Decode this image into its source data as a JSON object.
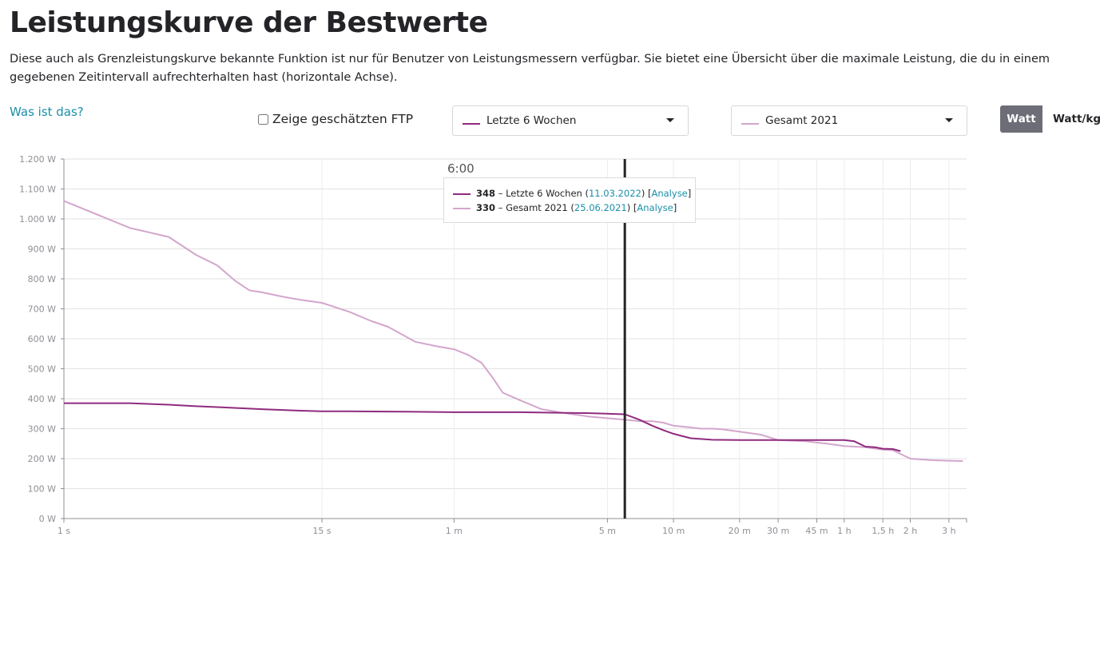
{
  "page": {
    "title": "Leistungskurve der Bestwerte",
    "description": "Diese auch als Grenzleistungskurve bekannte Funktion ist nur für Benutzer von Leistungsmessern verfügbar. Sie bietet eine Übersicht über die maximale Leistung, die du in einem gegebenen Zeitintervall aufrechterhalten hast (horizontale Achse).",
    "help_link": "Was ist das?"
  },
  "controls": {
    "ftp_label": "Zeige geschätzten FTP",
    "ftp_checked": false,
    "select1": {
      "label": "Letzte 6 Wochen",
      "color": "#8f2b7e"
    },
    "select2": {
      "label": "Gesamt 2021",
      "color": "#d3a6cc"
    },
    "units": [
      "Watt",
      "Watt/kg"
    ],
    "active_unit": "Watt"
  },
  "tooltip": {
    "time": "6:00",
    "rows": [
      {
        "value": "348",
        "sep": " – ",
        "name": "Letzte 6 Wochen",
        "open": " (",
        "date": "11.03.2022",
        "mid": ") [",
        "link": "Analyse",
        "close": "]",
        "color": "#8f2b7e"
      },
      {
        "value": "330",
        "sep": " – ",
        "name": "Gesamt 2021",
        "open": " (",
        "date": "25.06.2021",
        "mid": ") [",
        "link": "Analyse",
        "close": "]",
        "color": "#d3a6cc"
      }
    ]
  },
  "chart_data": {
    "type": "line",
    "x_scale": "log",
    "x_unit": "seconds",
    "xlim": [
      1,
      13000
    ],
    "ylim": [
      0,
      1200
    ],
    "grid": true,
    "cursor_x": 360,
    "y_ticks": [
      {
        "v": 0,
        "label": "0 W"
      },
      {
        "v": 100,
        "label": "100 W"
      },
      {
        "v": 200,
        "label": "200 W"
      },
      {
        "v": 300,
        "label": "300 W"
      },
      {
        "v": 400,
        "label": "400 W"
      },
      {
        "v": 500,
        "label": "500 W"
      },
      {
        "v": 600,
        "label": "600 W"
      },
      {
        "v": 700,
        "label": "700 W"
      },
      {
        "v": 800,
        "label": "800 W"
      },
      {
        "v": 900,
        "label": "900 W"
      },
      {
        "v": 1000,
        "label": "1.000 W"
      },
      {
        "v": 1100,
        "label": "1.100 W"
      },
      {
        "v": 1200,
        "label": "1.200 W"
      }
    ],
    "x_ticks": [
      {
        "v": 1,
        "label": "1 s"
      },
      {
        "v": 15,
        "label": "15 s"
      },
      {
        "v": 60,
        "label": "1 m"
      },
      {
        "v": 300,
        "label": "5 m"
      },
      {
        "v": 600,
        "label": "10 m"
      },
      {
        "v": 1200,
        "label": "20 m"
      },
      {
        "v": 1800,
        "label": "30 m"
      },
      {
        "v": 2700,
        "label": "45 m"
      },
      {
        "v": 3600,
        "label": "1 h"
      },
      {
        "v": 5400,
        "label": "1,5 h"
      },
      {
        "v": 7200,
        "label": "2 h"
      },
      {
        "v": 10800,
        "label": "3 h"
      }
    ],
    "series": [
      {
        "name": "Letzte 6 Wochen",
        "color": "#8f2b7e",
        "x": [
          1,
          2,
          3,
          4,
          5,
          8,
          12,
          15,
          20,
          30,
          45,
          60,
          90,
          120,
          180,
          240,
          300,
          360,
          420,
          480,
          540,
          600,
          660,
          720,
          900,
          1200,
          1800,
          2400,
          3000,
          3600,
          4000,
          4500,
          5000,
          5400,
          6000,
          6500
        ],
        "y": [
          385,
          385,
          380,
          375,
          372,
          365,
          360,
          358,
          358,
          357,
          356,
          355,
          355,
          355,
          353,
          352,
          350,
          348,
          330,
          310,
          295,
          283,
          275,
          268,
          263,
          262,
          262,
          262,
          262,
          262,
          258,
          240,
          238,
          233,
          232,
          225
        ]
      },
      {
        "name": "Gesamt 2021",
        "color": "#d3a6cc",
        "x": [
          1,
          2,
          3,
          4,
          5,
          6,
          7,
          8,
          10,
          12,
          15,
          20,
          25,
          30,
          40,
          50,
          60,
          70,
          80,
          90,
          100,
          120,
          150,
          200,
          250,
          300,
          360,
          420,
          480,
          540,
          600,
          700,
          800,
          900,
          1000,
          1200,
          1500,
          1800,
          2400,
          3000,
          3600,
          4500,
          5400,
          6000,
          7200,
          9000,
          10800,
          12500
        ],
        "y": [
          1060,
          970,
          940,
          880,
          845,
          795,
          762,
          755,
          740,
          730,
          720,
          690,
          660,
          640,
          590,
          575,
          565,
          545,
          520,
          470,
          420,
          395,
          365,
          350,
          340,
          335,
          330,
          325,
          325,
          320,
          310,
          305,
          300,
          300,
          298,
          290,
          280,
          262,
          258,
          250,
          242,
          238,
          230,
          228,
          200,
          195,
          193,
          192
        ]
      }
    ]
  }
}
